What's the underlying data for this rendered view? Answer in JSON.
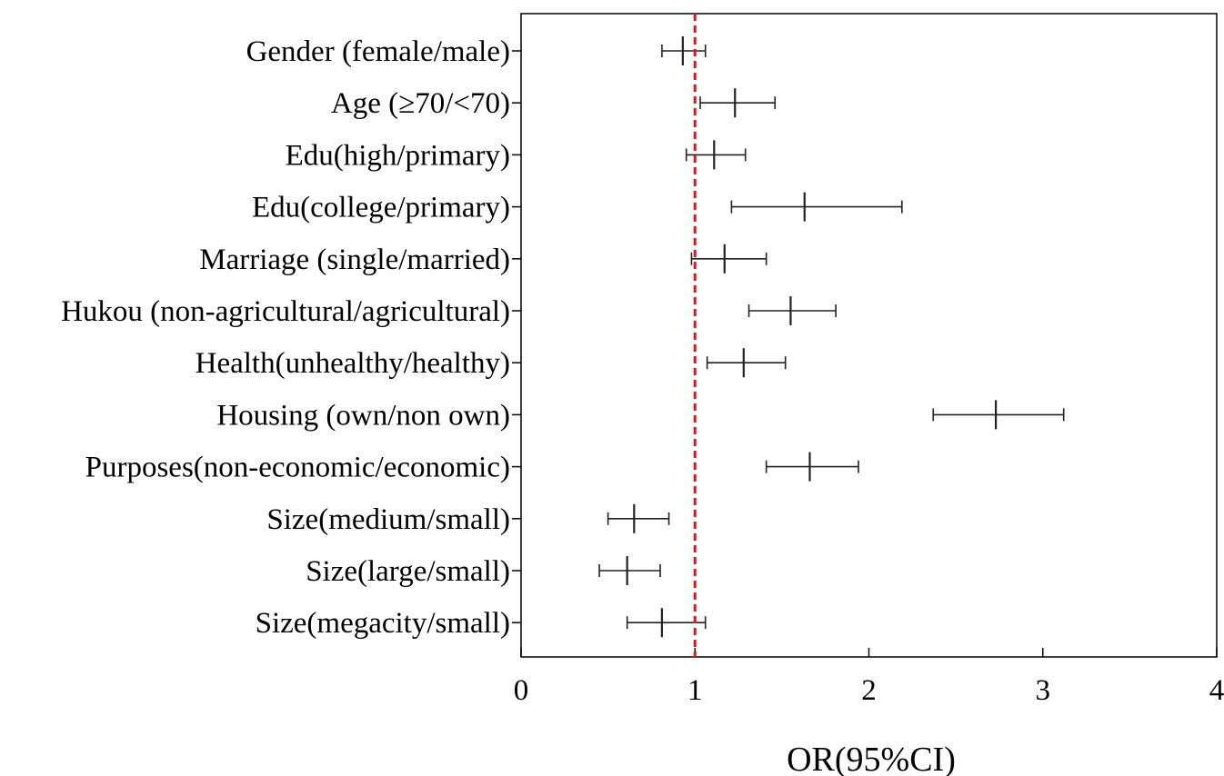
{
  "chart_data": {
    "type": "forest",
    "title": "",
    "xlabel": "OR(95%CI)",
    "ylabel": "",
    "xlim": [
      0,
      4
    ],
    "xticks": [
      0,
      1,
      2,
      3,
      4
    ],
    "xtick_labels": [
      "0",
      "1",
      "2",
      "3",
      "4"
    ],
    "reference_line": 1,
    "reference_color": "#e8141b",
    "grid": false,
    "categories": [
      "Gender (female/male)",
      "Age (≥70/<70)",
      "Edu(high/primary)",
      "Edu(college/primary)",
      "Marriage (single/married)",
      "Hukou (non-agricultural/agricultural)",
      "Health(unhealthy/healthy)",
      "Housing (own/non own)",
      "Purposes(non-economic/economic)",
      "Size(medium/small)",
      "Size(large/small)",
      "Size(megacity/small)"
    ],
    "or": [
      0.93,
      1.23,
      1.11,
      1.63,
      1.17,
      1.55,
      1.28,
      2.73,
      1.66,
      0.65,
      0.61,
      0.81
    ],
    "lower": [
      0.81,
      1.03,
      0.95,
      1.21,
      0.98,
      1.31,
      1.07,
      2.37,
      1.41,
      0.5,
      0.45,
      0.61
    ],
    "upper": [
      1.06,
      1.46,
      1.29,
      2.19,
      1.41,
      1.81,
      1.52,
      3.12,
      1.94,
      0.85,
      0.8,
      1.06
    ]
  }
}
